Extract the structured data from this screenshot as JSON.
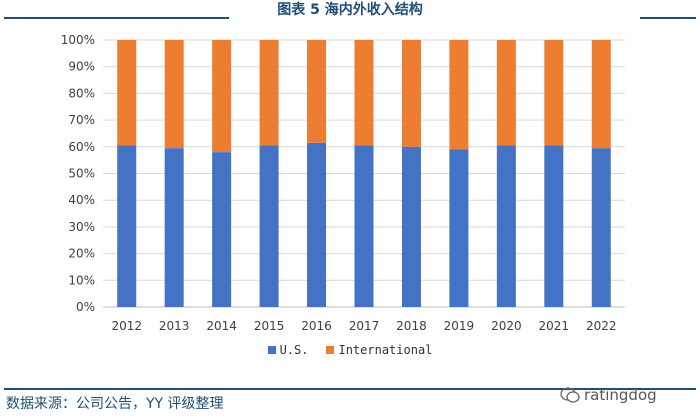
{
  "page": {
    "title": "图表 5 海内外收入结构"
  },
  "chart_data": {
    "type": "bar",
    "stacked": true,
    "title": "",
    "xlabel": "",
    "ylabel": "",
    "ylim": [
      0,
      100
    ],
    "y_ticks": [
      "0%",
      "10%",
      "20%",
      "30%",
      "40%",
      "50%",
      "60%",
      "70%",
      "80%",
      "90%",
      "100%"
    ],
    "categories": [
      "2012",
      "2013",
      "2014",
      "2015",
      "2016",
      "2017",
      "2018",
      "2019",
      "2020",
      "2021",
      "2022"
    ],
    "series": [
      {
        "name": "U.S.",
        "color": "#4472c4",
        "values": [
          60.5,
          59.5,
          58,
          60.5,
          61.5,
          60.5,
          60,
          59,
          60.5,
          60.5,
          59.5
        ]
      },
      {
        "name": "International",
        "color": "#ed7d31",
        "values": [
          39.5,
          40.5,
          42,
          39.5,
          38.5,
          39.5,
          40,
          41,
          39.5,
          39.5,
          40.5
        ]
      }
    ],
    "grid": true,
    "legend": "bottom"
  },
  "footer": {
    "source": "数据来源：公司公告，YY 评级整理",
    "watermark": "ratingdog"
  }
}
